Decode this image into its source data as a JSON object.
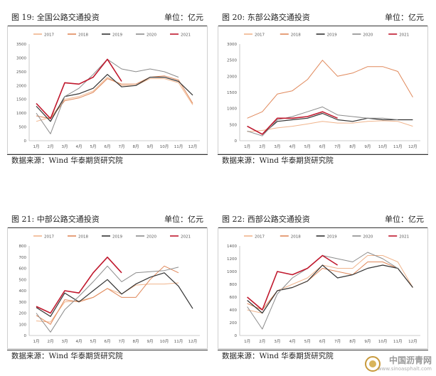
{
  "source_note": "数据来源：Wind 华泰期货研究院",
  "watermark": {
    "title": "中国沥青网",
    "url": "www.sinoasphalt.com"
  },
  "colors": {
    "2017": "#f0b48c",
    "2018": "#e0885a",
    "2019": "#333333",
    "2020": "#8c8c8c",
    "2021": "#c0182d"
  },
  "chart_data": [
    {
      "type": "line",
      "title": "图 19: 全国公路交通投资",
      "unit": "单位：亿元",
      "categories": [
        "1月",
        "2月",
        "3月",
        "4月",
        "5月",
        "6月",
        "7月",
        "8月",
        "9月",
        "10月",
        "11月",
        "12月"
      ],
      "ylim": [
        0,
        3500
      ],
      "yticks": [
        0,
        500,
        1000,
        1500,
        2000,
        2500,
        3000,
        3500
      ],
      "series": [
        {
          "name": "2017",
          "values": [
            700,
            850,
            1500,
            1600,
            1800,
            2300,
            2000,
            2000,
            2250,
            2250,
            2100,
            1300
          ]
        },
        {
          "name": "2018",
          "values": [
            900,
            800,
            1450,
            1550,
            1750,
            2250,
            2050,
            2050,
            2300,
            2350,
            2200,
            1350
          ]
        },
        {
          "name": "2019",
          "values": [
            1250,
            700,
            1600,
            1700,
            1900,
            2400,
            1950,
            2000,
            2300,
            2300,
            2150,
            1650
          ]
        },
        {
          "name": "2020",
          "values": [
            1000,
            250,
            1600,
            1900,
            2400,
            2950,
            2600,
            2500,
            2600,
            2500,
            2300,
            null
          ]
        },
        {
          "name": "2021",
          "values": [
            1350,
            800,
            2100,
            2050,
            2300,
            2950,
            2150,
            null,
            null,
            null,
            null,
            null
          ]
        }
      ]
    },
    {
      "type": "line",
      "title": "图 20: 东部公路交通投资",
      "unit": "单位：亿元",
      "categories": [
        "1月",
        "2月",
        "3月",
        "4月",
        "5月",
        "6月",
        "7月",
        "8月",
        "9月",
        "10月",
        "11月",
        "12月"
      ],
      "ylim": [
        0,
        3000
      ],
      "yticks": [
        0,
        500,
        1000,
        1500,
        2000,
        2500,
        3000
      ],
      "series": [
        {
          "name": "2017",
          "values": [
            280,
            320,
            400,
            450,
            520,
            600,
            550,
            550,
            600,
            620,
            600,
            450
          ]
        },
        {
          "name": "2018",
          "values": [
            700,
            900,
            1450,
            1550,
            1900,
            2500,
            2000,
            2100,
            2300,
            2300,
            2150,
            1350
          ]
        },
        {
          "name": "2019",
          "values": [
            450,
            200,
            600,
            650,
            700,
            850,
            650,
            600,
            700,
            650,
            650,
            650
          ]
        },
        {
          "name": "2020",
          "values": [
            300,
            150,
            650,
            750,
            900,
            1050,
            800,
            750,
            700,
            700,
            650,
            null
          ]
        },
        {
          "name": "2021",
          "values": [
            450,
            200,
            700,
            700,
            750,
            900,
            700,
            null,
            null,
            null,
            null,
            null
          ]
        }
      ]
    },
    {
      "type": "line",
      "title": "图 21: 中部公路交通投资",
      "unit": "单位：亿元",
      "categories": [
        "1月",
        "2月",
        "3月",
        "4月",
        "5月",
        "6月",
        "7月",
        "8月",
        "9月",
        "10月",
        "11月",
        "12月"
      ],
      "ylim": [
        0,
        800
      ],
      "yticks": [
        0,
        100,
        200,
        300,
        400,
        500,
        600,
        700,
        800
      ],
      "series": [
        {
          "name": "2017",
          "values": [
            130,
            120,
            300,
            310,
            340,
            420,
            370,
            450,
            460,
            460,
            470,
            null
          ]
        },
        {
          "name": "2018",
          "values": [
            180,
            100,
            320,
            300,
            340,
            420,
            340,
            340,
            500,
            620,
            560,
            null
          ]
        },
        {
          "name": "2019",
          "values": [
            250,
            170,
            380,
            300,
            400,
            500,
            370,
            460,
            520,
            560,
            440,
            240
          ]
        },
        {
          "name": "2020",
          "values": [
            200,
            30,
            230,
            350,
            480,
            620,
            480,
            560,
            570,
            580,
            610,
            null
          ]
        },
        {
          "name": "2021",
          "values": [
            260,
            200,
            400,
            380,
            560,
            700,
            560,
            null,
            null,
            null,
            null,
            null
          ]
        }
      ]
    },
    {
      "type": "line",
      "title": "图 22: 西部公路交通投资",
      "unit": "单位：亿元",
      "categories": [
        "1月",
        "2月",
        "3月",
        "4月",
        "5月",
        "6月",
        "7月",
        "8月",
        "9月",
        "10月",
        "11月",
        "12月"
      ],
      "ylim": [
        0,
        1400
      ],
      "yticks": [
        0,
        200,
        400,
        600,
        800,
        1000,
        1200,
        1400
      ],
      "series": [
        {
          "name": "2017",
          "values": [
            400,
            350,
            700,
            800,
            900,
            1100,
            1050,
            1050,
            1250,
            1250,
            1150,
            750
          ]
        },
        {
          "name": "2018",
          "values": [
            500,
            400,
            700,
            750,
            850,
            1050,
            1000,
            950,
            1150,
            1150,
            1050,
            750
          ]
        },
        {
          "name": "2019",
          "values": [
            550,
            350,
            700,
            750,
            850,
            1100,
            900,
            950,
            1050,
            1100,
            1050,
            750
          ]
        },
        {
          "name": "2020",
          "values": [
            450,
            100,
            650,
            900,
            1050,
            1250,
            1200,
            1150,
            1300,
            1200,
            1050,
            null
          ]
        },
        {
          "name": "2021",
          "values": [
            600,
            400,
            1000,
            950,
            1050,
            1250,
            1100,
            null,
            null,
            null,
            null,
            null
          ]
        }
      ]
    }
  ]
}
